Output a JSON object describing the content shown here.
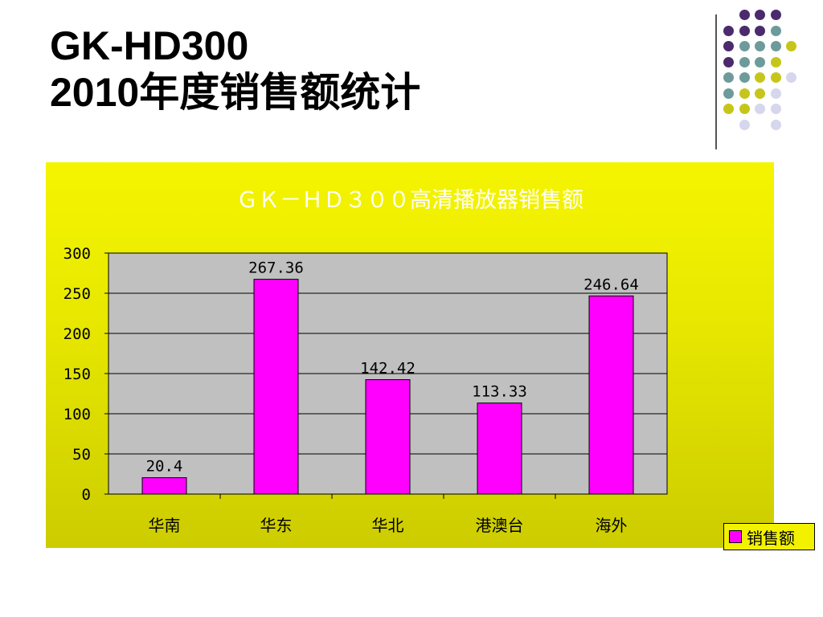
{
  "slide": {
    "title_line1": "GK-HD300",
    "title_line2": "2010年度销售额统计"
  },
  "decor": {
    "colors": [
      "#4b2a6e",
      "#6d9b9b",
      "#c6c61a",
      "#d6d6ee"
    ]
  },
  "chart_data": {
    "type": "bar",
    "title": "ＧＫ－ＨＤ３００高清播放器销售额",
    "categories": [
      "华南",
      "华东",
      "华北",
      "港澳台",
      "海外"
    ],
    "series": [
      {
        "name": "销售额",
        "values": [
          20.4,
          267.36,
          142.42,
          113.33,
          246.64
        ],
        "color": "#ff00ff"
      }
    ],
    "data_labels": [
      "20.4",
      "267.36",
      "142.42",
      "113.33",
      "246.64"
    ],
    "yticks": [
      "0",
      "50",
      "100",
      "150",
      "200",
      "250",
      "300"
    ],
    "ylim": [
      0,
      300
    ],
    "grid": true,
    "legend": "right",
    "plot_bg": "#c0c0c0"
  }
}
